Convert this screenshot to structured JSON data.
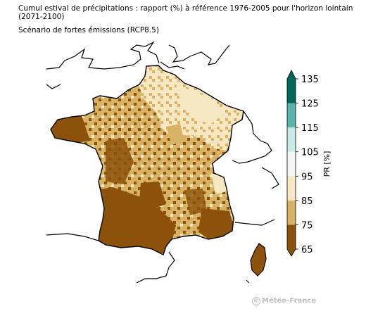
{
  "header": {
    "title": "Cumul estival de précipitations : rapport (%) à référence 1976-2005 pour l'horizon lointain (2071-2100)",
    "subtitle": "Scénario de fortes émissions (RCP8.5)"
  },
  "legend": {
    "label": "PR [%]",
    "ticks": [
      "65",
      "75",
      "85",
      "95",
      "105",
      "115",
      "125",
      "135"
    ],
    "colors": [
      "#8c510a",
      "#d8b365",
      "#f6e8c3",
      "#f5f5f5",
      "#c7eae5",
      "#5ab4ac",
      "#01665e"
    ]
  },
  "map": {
    "country": "France",
    "dominant_classes": [
      "65-75",
      "75-85",
      "85-95"
    ],
    "colors": {
      "dry_strong": "#8c510a",
      "dry_medium": "#d8b365",
      "dry_light": "#f6e8c3",
      "outline": "#000000"
    }
  },
  "credit": {
    "text": "Météo-France",
    "symbol": "©"
  }
}
